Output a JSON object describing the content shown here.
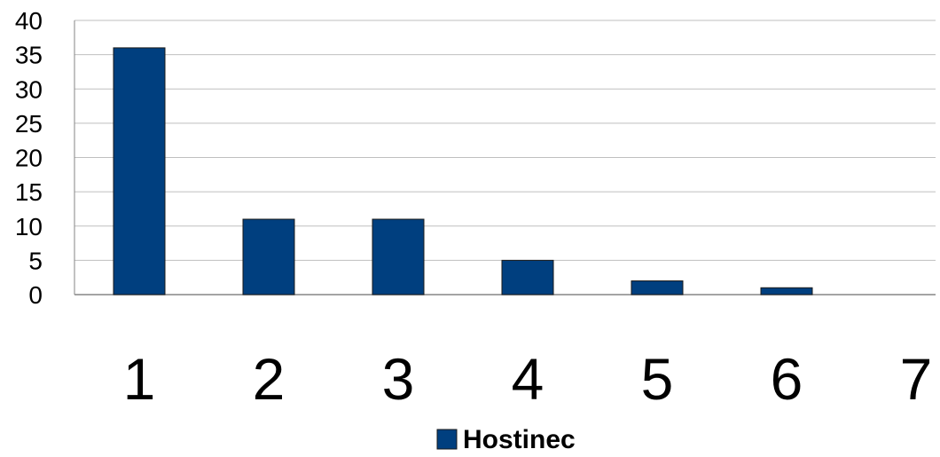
{
  "chart_data": {
    "type": "bar",
    "categories": [
      "1",
      "2",
      "3",
      "4",
      "5",
      "6",
      "7"
    ],
    "series": [
      {
        "name": "Hostinec",
        "values": [
          36,
          11,
          11,
          5,
          2,
          1,
          0
        ],
        "color": "#003F7F"
      }
    ],
    "ylim": [
      0,
      40
    ],
    "yticks": [
      0,
      5,
      10,
      15,
      20,
      25,
      30,
      35,
      40
    ],
    "grid": true,
    "legend_position": "bottom-center",
    "gridline_color": "#BFBFBF",
    "axis_color": "#868686"
  }
}
